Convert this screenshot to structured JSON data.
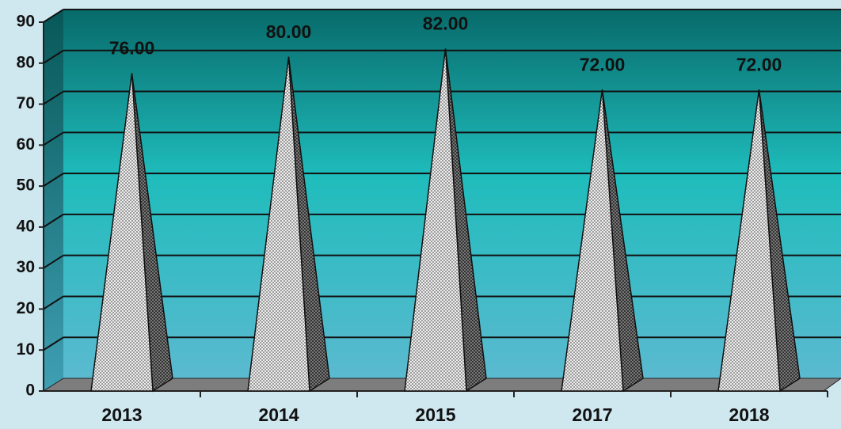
{
  "chart_data": {
    "type": "pyramid",
    "categories": [
      "2013",
      "2014",
      "2015",
      "2017",
      "2018"
    ],
    "values": [
      76,
      80,
      82,
      72,
      72
    ],
    "value_labels": [
      "76.00",
      "80.00",
      "82.00",
      "72.00",
      "72.00"
    ],
    "ylim": [
      0,
      90
    ],
    "yticks": [
      0,
      10,
      20,
      30,
      40,
      50,
      60,
      70,
      80,
      90
    ],
    "grid": true
  }
}
